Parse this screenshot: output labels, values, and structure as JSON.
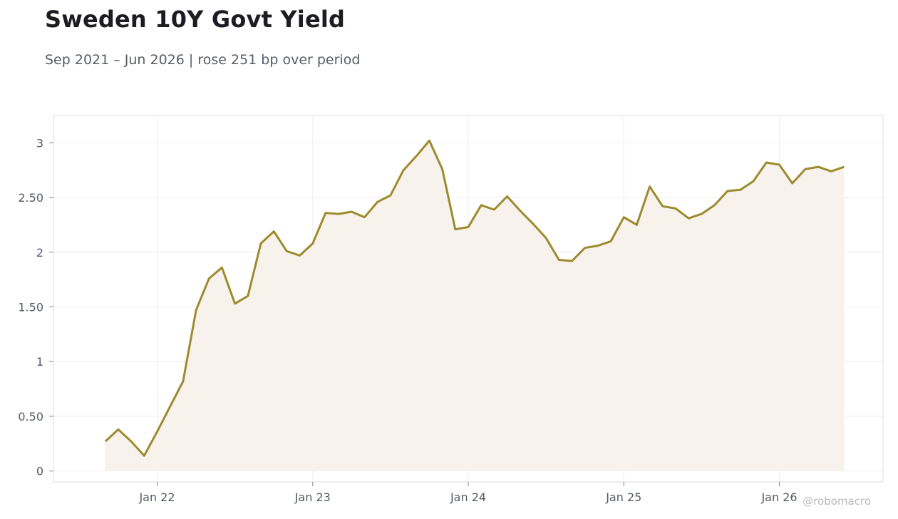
{
  "header": {
    "title": "Sweden 10Y Govt Yield",
    "subtitle": "Sep 2021 – Jun 2026 | rose 251 bp over period"
  },
  "watermark": "@robomacro",
  "colors": {
    "line": "#9e8a2e",
    "fill": "#f7f3ec",
    "grid": "#eeeeee",
    "frame": "#dddddd"
  },
  "chart_data": {
    "type": "area",
    "title": "Sweden 10Y Govt Yield",
    "subtitle": "Sep 2021 – Jun 2026 | rose 251 bp over period",
    "xlabel": "",
    "ylabel": "",
    "x_start": "2021-09",
    "x_end": "2026-06",
    "x_range": [
      "2021-05",
      "2026-09"
    ],
    "ylim": [
      -0.1,
      3.25
    ],
    "yticks": [
      0,
      0.5,
      1,
      1.5,
      2,
      2.5,
      3
    ],
    "ytick_labels": [
      "0",
      "0.50",
      "1",
      "1.50",
      "2",
      "2.50",
      "3"
    ],
    "xticks": [
      "2022-01",
      "2023-01",
      "2024-01",
      "2025-01",
      "2026-01"
    ],
    "xtick_labels": [
      "Jan 22",
      "Jan 23",
      "Jan 24",
      "Jan 25",
      "Jan 26"
    ],
    "grid": true,
    "legend": "none",
    "series": [
      {
        "values": [
          0.27,
          0.38,
          0.27,
          0.14,
          0.36,
          0.59,
          0.82,
          1.47,
          1.76,
          1.86,
          1.53,
          1.6,
          2.08,
          2.19,
          2.01,
          1.97,
          2.08,
          2.36,
          2.35,
          2.37,
          2.32,
          2.46,
          2.52,
          2.75,
          2.88,
          3.02,
          2.76,
          2.21,
          2.23,
          2.43,
          2.39,
          2.51,
          2.38,
          2.26,
          2.13,
          1.93,
          1.92,
          2.04,
          2.06,
          2.1,
          2.32,
          2.25,
          2.6,
          2.42,
          2.4,
          2.31,
          2.35,
          2.43,
          2.56,
          2.57,
          2.65,
          2.82,
          2.8,
          2.63,
          2.76,
          2.78,
          2.74,
          2.78
        ]
      }
    ]
  }
}
